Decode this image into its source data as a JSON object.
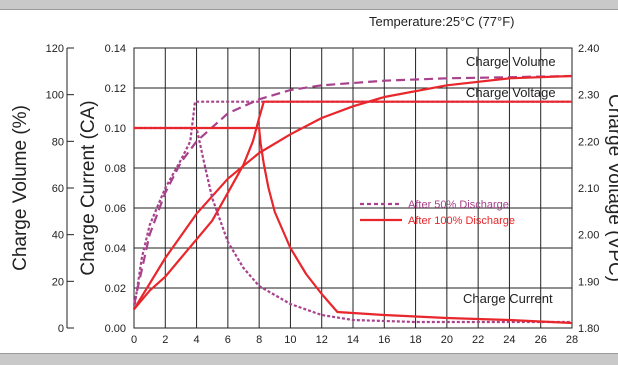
{
  "header": {
    "temperature": "Temperature:25°C (77°F)"
  },
  "chart_data": {
    "type": "line",
    "grid": true,
    "xlim": [
      0,
      28
    ],
    "x_ticks": [
      "0",
      "2",
      "4",
      "6",
      "8",
      "10",
      "12",
      "14",
      "16",
      "18",
      "20",
      "22",
      "24",
      "26",
      "28"
    ],
    "axes": {
      "charge_volume": {
        "label": "Charge Volume (%)",
        "ylim": [
          0,
          120
        ],
        "ticks": [
          "0",
          "20",
          "40",
          "60",
          "80",
          "100",
          "120"
        ]
      },
      "charge_current": {
        "label": "Charge Current (CA)",
        "ylim": [
          0,
          0.14
        ],
        "ticks": [
          "0.00",
          "0.02",
          "0.04",
          "0.06",
          "0.08",
          "0.10",
          "0.12",
          "0.14"
        ]
      },
      "charge_voltage": {
        "label": "Charge Voltage (VPC)",
        "ylim": [
          1.8,
          2.4
        ],
        "ticks": [
          "1.80",
          "1.90",
          "2.00",
          "2.10",
          "2.20",
          "2.30",
          "2.40"
        ]
      }
    },
    "legend": {
      "placement": "center-right",
      "entries": [
        {
          "label": "After 50% Discharge",
          "color": "#a8428c",
          "style": "dashed"
        },
        {
          "label": "After 100% Discharge",
          "color": "#e8262b",
          "style": "solid"
        }
      ]
    },
    "annotations": {
      "charge_volume": "Charge Volume",
      "charge_voltage": "Charge Voltage",
      "charge_current": "Charge Current"
    },
    "series": [
      {
        "curve": "Charge Volume",
        "discharge": "After 50% Discharge",
        "axis": "charge_volume",
        "color": "#a8428c",
        "style": "longdash",
        "x": [
          0,
          1,
          2,
          3,
          4,
          6,
          8,
          10,
          12,
          16,
          20,
          24,
          28
        ],
        "y": [
          10,
          40,
          58,
          71,
          80,
          92,
          98,
          102,
          104,
          106,
          107,
          107.5,
          108
        ]
      },
      {
        "curve": "Charge Volume",
        "discharge": "After 100% Discharge",
        "axis": "charge_volume",
        "color": "#e8262b",
        "style": "solid",
        "x": [
          0,
          2,
          4,
          6,
          8,
          10,
          12,
          14,
          16,
          20,
          24,
          28
        ],
        "y": [
          8,
          30,
          49,
          64,
          75,
          83,
          90,
          95,
          99,
          104,
          107,
          108
        ]
      },
      {
        "curve": "Charge Voltage",
        "discharge": "After 50% Discharge",
        "axis": "charge_voltage",
        "color": "#a8428c",
        "style": "dotted",
        "x": [
          0,
          0.5,
          1,
          2,
          3,
          3.6,
          3.9,
          6,
          8,
          28
        ],
        "y": [
          1.84,
          1.95,
          2.02,
          2.1,
          2.16,
          2.2,
          2.285,
          2.285,
          2.285,
          2.285
        ]
      },
      {
        "curve": "Charge Voltage",
        "discharge": "After 100% Discharge",
        "axis": "charge_voltage",
        "color": "#e8262b",
        "style": "solid",
        "x": [
          0,
          1,
          2,
          3,
          4,
          5,
          6,
          7,
          7.6,
          8,
          8.3,
          9,
          28
        ],
        "y": [
          1.84,
          1.88,
          1.91,
          1.95,
          1.99,
          2.03,
          2.09,
          2.15,
          2.2,
          2.25,
          2.285,
          2.285,
          2.285
        ]
      },
      {
        "curve": "Charge Current",
        "discharge": "After 50% Discharge",
        "axis": "charge_current",
        "color": "#a8428c",
        "style": "dotted",
        "x": [
          0,
          4,
          4.5,
          5,
          6,
          7,
          8,
          10,
          12,
          14,
          18,
          28
        ],
        "y": [
          0.1,
          0.1,
          0.082,
          0.065,
          0.043,
          0.03,
          0.021,
          0.012,
          0.0065,
          0.004,
          0.003,
          0.003
        ]
      },
      {
        "curve": "Charge Current",
        "discharge": "After 100% Discharge",
        "axis": "charge_current",
        "color": "#e8262b",
        "style": "solid",
        "x": [
          0,
          8,
          8.1,
          8.3,
          8.6,
          9,
          10,
          11,
          12,
          13,
          16,
          20,
          24,
          28
        ],
        "y": [
          0.1,
          0.1,
          0.092,
          0.082,
          0.07,
          0.058,
          0.04,
          0.027,
          0.017,
          0.008,
          0.0065,
          0.005,
          0.004,
          0.0025
        ]
      }
    ]
  }
}
